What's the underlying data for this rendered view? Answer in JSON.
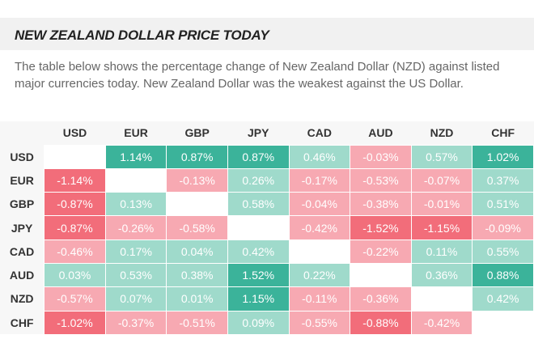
{
  "title": "NEW ZEALAND DOLLAR PRICE TODAY",
  "description": "The table below shows the percentage change of New Zealand Dollar (NZD) against listed major currencies today. New Zealand Dollar was the weakest against the US Dollar.",
  "currencies": [
    "USD",
    "EUR",
    "GBP",
    "JPY",
    "CAD",
    "AUD",
    "NZD",
    "CHF"
  ],
  "colors": {
    "pos_strong": "#3bb39a",
    "pos_light": "#9fdacb",
    "neg_strong": "#f26d7a",
    "neg_light": "#f7a9b2"
  },
  "rows": [
    {
      "label": "USD",
      "cells": [
        {
          "text": ""
        },
        {
          "text": "1.14%",
          "tone": "pos_strong"
        },
        {
          "text": "0.87%",
          "tone": "pos_strong"
        },
        {
          "text": "0.87%",
          "tone": "pos_strong"
        },
        {
          "text": "0.46%",
          "tone": "pos_light"
        },
        {
          "text": "-0.03%",
          "tone": "neg_light"
        },
        {
          "text": "0.57%",
          "tone": "pos_light"
        },
        {
          "text": "1.02%",
          "tone": "pos_strong"
        }
      ]
    },
    {
      "label": "EUR",
      "cells": [
        {
          "text": "-1.14%",
          "tone": "neg_strong"
        },
        {
          "text": ""
        },
        {
          "text": "-0.13%",
          "tone": "neg_light"
        },
        {
          "text": "0.26%",
          "tone": "pos_light"
        },
        {
          "text": "-0.17%",
          "tone": "neg_light"
        },
        {
          "text": "-0.53%",
          "tone": "neg_light"
        },
        {
          "text": "-0.07%",
          "tone": "neg_light"
        },
        {
          "text": "0.37%",
          "tone": "pos_light"
        }
      ]
    },
    {
      "label": "GBP",
      "cells": [
        {
          "text": "-0.87%",
          "tone": "neg_strong"
        },
        {
          "text": "0.13%",
          "tone": "pos_light"
        },
        {
          "text": ""
        },
        {
          "text": "0.58%",
          "tone": "pos_light"
        },
        {
          "text": "-0.04%",
          "tone": "neg_light"
        },
        {
          "text": "-0.38%",
          "tone": "neg_light"
        },
        {
          "text": "-0.01%",
          "tone": "neg_light"
        },
        {
          "text": "0.51%",
          "tone": "pos_light"
        }
      ]
    },
    {
      "label": "JPY",
      "cells": [
        {
          "text": "-0.87%",
          "tone": "neg_strong"
        },
        {
          "text": "-0.26%",
          "tone": "neg_light"
        },
        {
          "text": "-0.58%",
          "tone": "neg_light"
        },
        {
          "text": ""
        },
        {
          "text": "-0.42%",
          "tone": "neg_light"
        },
        {
          "text": "-1.52%",
          "tone": "neg_strong"
        },
        {
          "text": "-1.15%",
          "tone": "neg_strong"
        },
        {
          "text": "-0.09%",
          "tone": "neg_light"
        }
      ]
    },
    {
      "label": "CAD",
      "cells": [
        {
          "text": "-0.46%",
          "tone": "neg_light"
        },
        {
          "text": "0.17%",
          "tone": "pos_light"
        },
        {
          "text": "0.04%",
          "tone": "pos_light"
        },
        {
          "text": "0.42%",
          "tone": "pos_light"
        },
        {
          "text": ""
        },
        {
          "text": "-0.22%",
          "tone": "neg_light"
        },
        {
          "text": "0.11%",
          "tone": "pos_light"
        },
        {
          "text": "0.55%",
          "tone": "pos_light"
        }
      ]
    },
    {
      "label": "AUD",
      "cells": [
        {
          "text": "0.03%",
          "tone": "pos_light"
        },
        {
          "text": "0.53%",
          "tone": "pos_light"
        },
        {
          "text": "0.38%",
          "tone": "pos_light"
        },
        {
          "text": "1.52%",
          "tone": "pos_strong"
        },
        {
          "text": "0.22%",
          "tone": "pos_light"
        },
        {
          "text": ""
        },
        {
          "text": "0.36%",
          "tone": "pos_light"
        },
        {
          "text": "0.88%",
          "tone": "pos_strong"
        }
      ]
    },
    {
      "label": "NZD",
      "cells": [
        {
          "text": "-0.57%",
          "tone": "neg_light"
        },
        {
          "text": "0.07%",
          "tone": "pos_light"
        },
        {
          "text": "0.01%",
          "tone": "pos_light"
        },
        {
          "text": "1.15%",
          "tone": "pos_strong"
        },
        {
          "text": "-0.11%",
          "tone": "neg_light"
        },
        {
          "text": "-0.36%",
          "tone": "neg_light"
        },
        {
          "text": ""
        },
        {
          "text": "0.42%",
          "tone": "pos_light"
        }
      ]
    },
    {
      "label": "CHF",
      "cells": [
        {
          "text": "-1.02%",
          "tone": "neg_strong"
        },
        {
          "text": "-0.37%",
          "tone": "neg_light"
        },
        {
          "text": "-0.51%",
          "tone": "neg_light"
        },
        {
          "text": "0.09%",
          "tone": "pos_light"
        },
        {
          "text": "-0.55%",
          "tone": "neg_light"
        },
        {
          "text": "-0.88%",
          "tone": "neg_strong"
        },
        {
          "text": "-0.42%",
          "tone": "neg_light"
        },
        {
          "text": ""
        }
      ]
    }
  ]
}
